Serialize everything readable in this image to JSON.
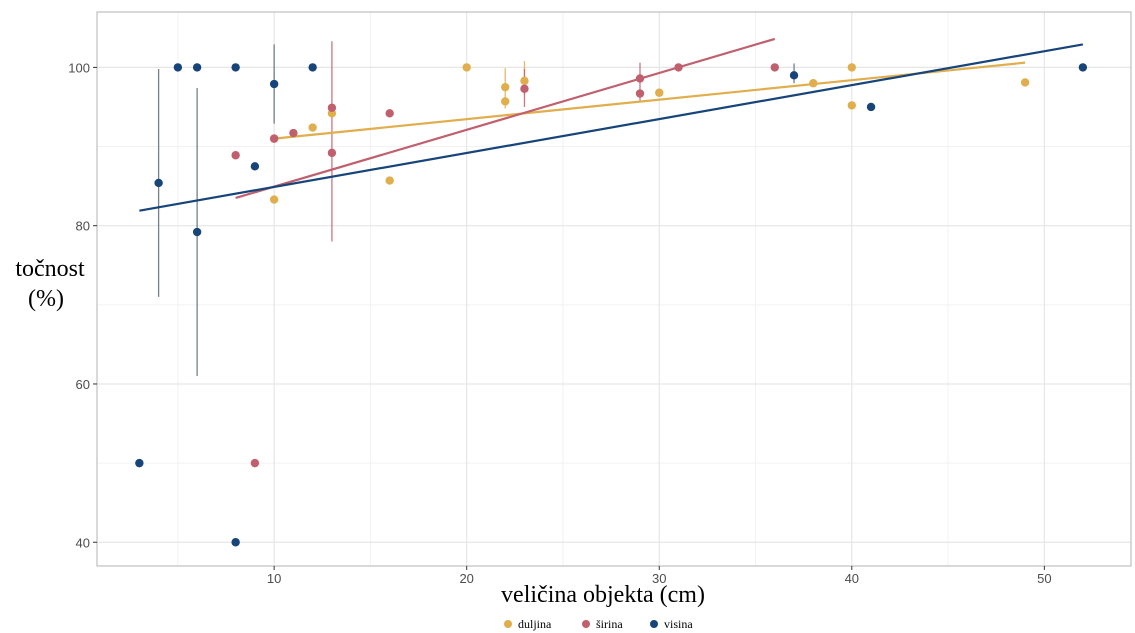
{
  "chart_data": {
    "type": "scatter",
    "title": "",
    "xlabel": "veličina objekta (cm)",
    "ylabel_lines": [
      "točnost",
      "(%)"
    ],
    "xlim": [
      0.8,
      54.5
    ],
    "ylim": [
      37,
      107
    ],
    "xticks": [
      10,
      20,
      30,
      40,
      50
    ],
    "yticks": [
      40,
      60,
      80,
      100
    ],
    "grid": true,
    "legend_position": "bottom",
    "series": [
      {
        "name": "duljina",
        "color": "#E0AE4C",
        "points": [
          {
            "x": 10,
            "y": 83.3
          },
          {
            "x": 10,
            "y": 91.0
          },
          {
            "x": 12,
            "y": 92.4
          },
          {
            "x": 13,
            "y": 94.2
          },
          {
            "x": 16,
            "y": 85.7
          },
          {
            "x": 20,
            "y": 100
          },
          {
            "x": 22,
            "y": 95.7
          },
          {
            "x": 22,
            "y": 97.5
          },
          {
            "x": 23,
            "y": 98.3
          },
          {
            "x": 30,
            "y": 96.8
          },
          {
            "x": 38,
            "y": 98.0
          },
          {
            "x": 40,
            "y": 100
          },
          {
            "x": 40,
            "y": 95.2
          },
          {
            "x": 49,
            "y": 98.1
          }
        ],
        "errorbars": [
          {
            "x": 22,
            "y0": 94.8,
            "y1": 99.9
          },
          {
            "x": 23,
            "y0": 96.5,
            "y1": 100.8
          }
        ],
        "fit": {
          "x0": 10,
          "y0": 91.0,
          "x1": 49,
          "y1": 100.6
        }
      },
      {
        "name": "širina",
        "color": "#C0606E",
        "points": [
          {
            "x": 8,
            "y": 88.9
          },
          {
            "x": 9,
            "y": 50
          },
          {
            "x": 10,
            "y": 91.0
          },
          {
            "x": 11,
            "y": 91.7
          },
          {
            "x": 13,
            "y": 94.9
          },
          {
            "x": 13,
            "y": 89.2
          },
          {
            "x": 16,
            "y": 94.2
          },
          {
            "x": 23,
            "y": 97.3
          },
          {
            "x": 29,
            "y": 98.6
          },
          {
            "x": 29,
            "y": 96.7
          },
          {
            "x": 31,
            "y": 100
          },
          {
            "x": 36,
            "y": 100
          }
        ],
        "errorbars": [
          {
            "x": 13,
            "y0": 78.0,
            "y1": 103.3
          },
          {
            "x": 23,
            "y0": 95.0,
            "y1": 99.8
          },
          {
            "x": 29,
            "y0": 95.8,
            "y1": 100.6
          }
        ],
        "fit": {
          "x0": 8,
          "y0": 83.5,
          "x1": 36,
          "y1": 103.6
        }
      },
      {
        "name": "visina",
        "color": "#17457A",
        "points": [
          {
            "x": 3,
            "y": 50
          },
          {
            "x": 4,
            "y": 85.4
          },
          {
            "x": 5,
            "y": 100
          },
          {
            "x": 6,
            "y": 100
          },
          {
            "x": 6,
            "y": 79.2
          },
          {
            "x": 8,
            "y": 100
          },
          {
            "x": 8,
            "y": 40
          },
          {
            "x": 9,
            "y": 87.5
          },
          {
            "x": 10,
            "y": 97.9
          },
          {
            "x": 12,
            "y": 100
          },
          {
            "x": 37,
            "y": 99.0
          },
          {
            "x": 41,
            "y": 95.0
          },
          {
            "x": 52,
            "y": 100
          }
        ],
        "errorbars": [
          {
            "x": 4,
            "y0": 71.0,
            "y1": 99.8
          },
          {
            "x": 6,
            "y0": 61.0,
            "y1": 97.4
          },
          {
            "x": 10,
            "y0": 92.9,
            "y1": 102.9
          },
          {
            "x": 37,
            "y0": 98.0,
            "y1": 100.5
          }
        ],
        "fit": {
          "x0": 3,
          "y0": 81.9,
          "x1": 52,
          "y1": 102.9
        }
      }
    ]
  }
}
